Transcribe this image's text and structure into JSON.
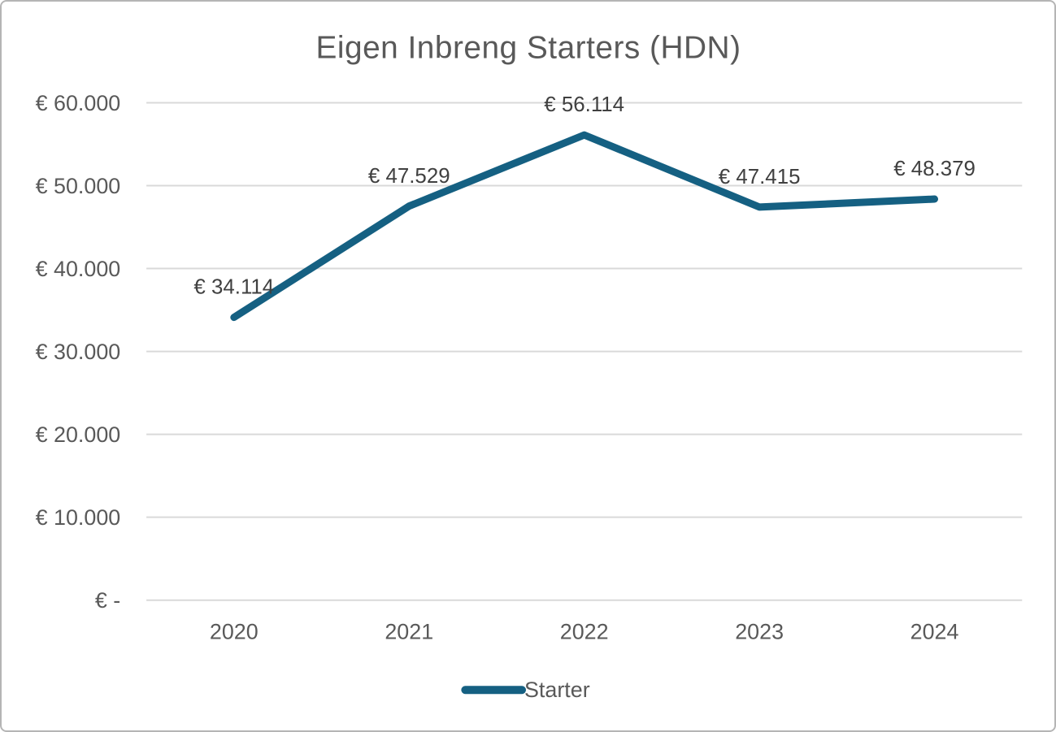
{
  "chart_data": {
    "type": "line",
    "title": "Eigen Inbreng Starters (HDN)",
    "categories": [
      "2020",
      "2021",
      "2022",
      "2023",
      "2024"
    ],
    "series": [
      {
        "name": "Starter",
        "values": [
          34114,
          47529,
          56114,
          47415,
          48379
        ],
        "data_labels": [
          "€ 34.114",
          "€ 47.529",
          "€ 56.114",
          "€ 47.415",
          "€ 48.379"
        ],
        "color": "#156082"
      }
    ],
    "xlabel": "",
    "ylabel": "",
    "ylim": [
      0,
      60000
    ],
    "y_ticks": [
      {
        "value": 60000,
        "label": "€ 60.000"
      },
      {
        "value": 50000,
        "label": "€ 50.000"
      },
      {
        "value": 40000,
        "label": "€ 40.000"
      },
      {
        "value": 30000,
        "label": "€ 30.000"
      },
      {
        "value": 20000,
        "label": "€ 20.000"
      },
      {
        "value": 10000,
        "label": "€ 10.000"
      },
      {
        "value": 0,
        "label": "€ -"
      }
    ],
    "grid": true,
    "legend_position": "bottom",
    "colors": {
      "line": "#156082",
      "gridline": "#D9D9D9",
      "axis_text": "#595959",
      "data_label_text": "#404040",
      "title_text": "#595959",
      "border": "#B5B5B5",
      "background": "#FFFFFF"
    }
  }
}
